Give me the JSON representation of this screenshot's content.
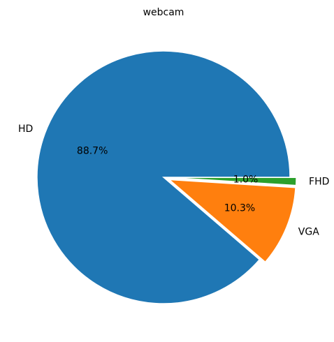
{
  "chart_data": {
    "type": "pie",
    "title": "webcam",
    "slices": [
      {
        "label": "HD",
        "value": 88.7,
        "pct_label": "88.7%",
        "color": "#1f77b4",
        "explode": 0.0
      },
      {
        "label": "VGA",
        "value": 10.3,
        "pct_label": "10.3%",
        "color": "#ff7f0e",
        "explode": 0.05
      },
      {
        "label": "FHD",
        "value": 1.0,
        "pct_label": "1.0%",
        "color": "#2ca02c",
        "explode": 0.05
      }
    ],
    "start_angle_deg": 0,
    "direction": "counterclockwise",
    "legend": "none"
  }
}
